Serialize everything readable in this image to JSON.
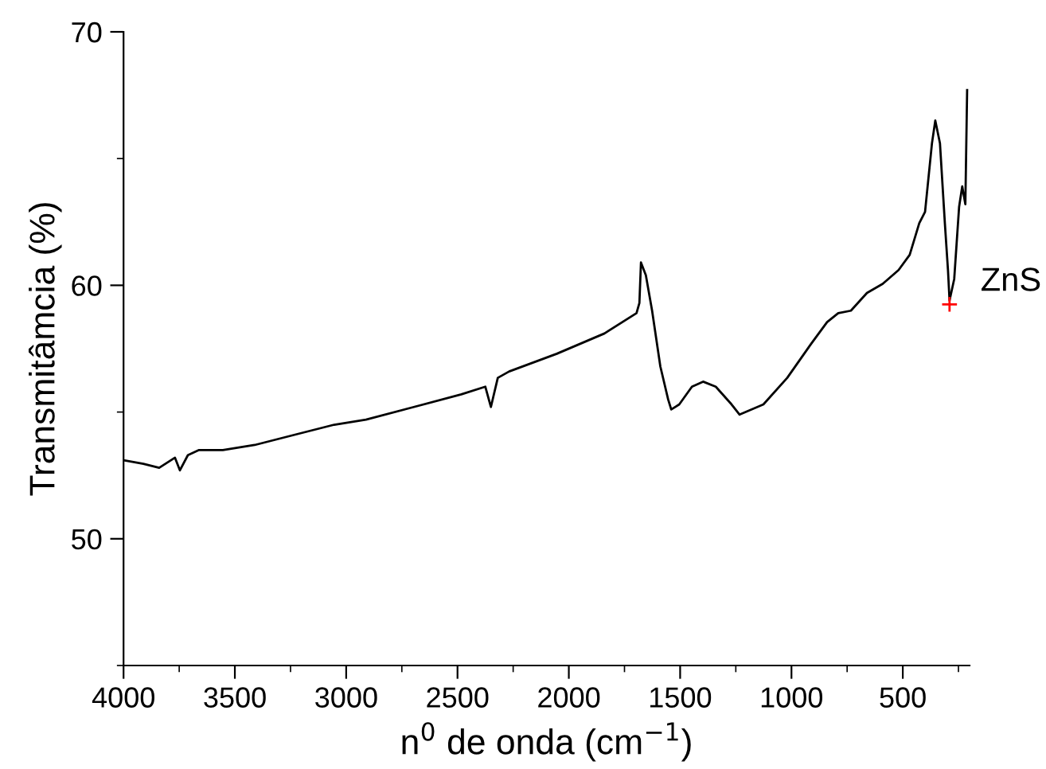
{
  "chart_data": {
    "type": "line",
    "xlabel": "n$^{0}$ de onda (cm$^{−1}$)",
    "ylabel": "Transmitâmcia (%)",
    "xlim": [
      4000,
      200
    ],
    "ylim": [
      45,
      70
    ],
    "xticks": [
      4000,
      {
        "value": 3750,
        "label": null
      },
      3500,
      {
        "value": 3250,
        "label": null
      },
      3000,
      {
        "value": 2750,
        "label": null
      },
      2500,
      {
        "value": 2250,
        "label": null
      },
      2000,
      {
        "value": 1750,
        "label": null
      },
      1500,
      {
        "value": 1250,
        "label": null
      },
      1000,
      {
        "value": 750,
        "label": null
      },
      500,
      {
        "value": 250,
        "label": null
      }
    ],
    "yticks": [
      {
        "value": 45,
        "label": null
      },
      50,
      {
        "value": 55,
        "label": null
      },
      60,
      {
        "value": 65,
        "label": null
      },
      70
    ],
    "grid": false,
    "legend": false,
    "series": [
      {
        "color": "#000000",
        "x": [
          4000,
          3911,
          3840,
          3769,
          3747,
          3711,
          3661,
          3554,
          3411,
          3233,
          3054,
          2911,
          2696,
          2483,
          2375,
          2350,
          2319,
          2268,
          2054,
          1840,
          1696,
          1683,
          1676,
          1654,
          1626,
          1589,
          1554,
          1540,
          1504,
          1447,
          1397,
          1340,
          1269,
          1233,
          1126,
          1019,
          911,
          840,
          790,
          733,
          661,
          590,
          519,
          469,
          426,
          400,
          369,
          354,
          333,
          311,
          297,
          290,
          269,
          247,
          233,
          219,
          211
        ],
        "values": [
          53.1,
          52.96,
          52.8,
          53.2,
          52.7,
          53.3,
          53.5,
          53.5,
          53.7,
          54.1,
          54.5,
          54.7,
          55.2,
          55.7,
          56.0,
          55.2,
          56.35,
          56.6,
          57.3,
          58.1,
          58.9,
          59.3,
          60.9,
          60.4,
          59.0,
          56.8,
          55.5,
          55.1,
          55.3,
          56.0,
          56.2,
          56.0,
          55.3,
          54.9,
          55.3,
          56.35,
          57.7,
          58.55,
          58.9,
          59.0,
          59.7,
          60.06,
          60.6,
          61.2,
          62.45,
          62.9,
          65.6,
          66.5,
          65.6,
          62.45,
          60.6,
          59.4,
          60.25,
          63.1,
          63.9,
          63.2,
          67.7
        ]
      },
      {
        "type": "scatter",
        "color": "#ff0000",
        "marker": "cross",
        "x": [
          290
        ],
        "values": [
          59.25
        ]
      }
    ],
    "annotations": [
      {
        "text": "ZnS",
        "x": 290,
        "y": 59.25
      }
    ]
  }
}
